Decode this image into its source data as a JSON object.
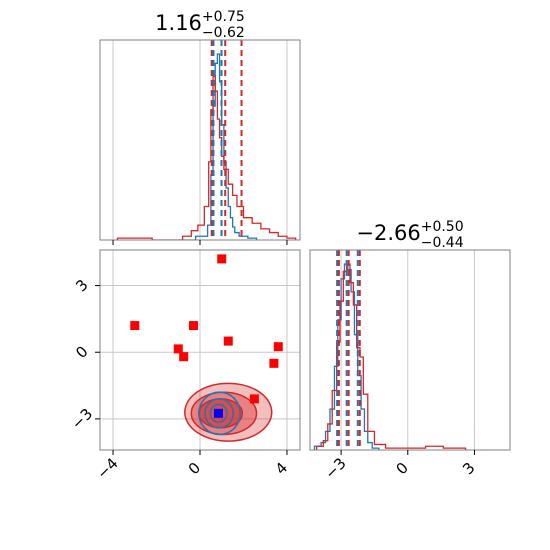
{
  "chart_data": [
    {
      "panel": "marginal-param-1",
      "type": "histogram",
      "title": {
        "value": "1.16",
        "plus": "+0.75",
        "minus": "−0.62"
      },
      "xlim": [
        -4.6,
        4.6
      ],
      "grid": true,
      "x_ticks": [
        -4,
        0,
        4
      ],
      "series": [
        {
          "color": "#1f77b4",
          "bins": [
            [
              -1.0,
              0
            ],
            [
              -0.2,
              0.02
            ],
            [
              0.35,
              0.08
            ],
            [
              0.5,
              0.35
            ],
            [
              0.6,
              0.72
            ],
            [
              0.7,
              0.95
            ],
            [
              0.8,
              1.0
            ],
            [
              0.9,
              0.85
            ],
            [
              1.0,
              0.62
            ],
            [
              1.1,
              0.42
            ],
            [
              1.2,
              0.28
            ],
            [
              1.3,
              0.18
            ],
            [
              1.4,
              0.12
            ],
            [
              1.5,
              0.07
            ],
            [
              1.6,
              0.04
            ],
            [
              1.8,
              0.02
            ],
            [
              2.2,
              0.01
            ],
            [
              2.6,
              0
            ]
          ]
        },
        {
          "color": "#d62728",
          "bins": [
            [
              -3.8,
              0.01
            ],
            [
              -2.2,
              0
            ],
            [
              -0.8,
              0.02
            ],
            [
              -0.4,
              0.05
            ],
            [
              -0.1,
              0.08
            ],
            [
              0.2,
              0.18
            ],
            [
              0.4,
              0.42
            ],
            [
              0.5,
              0.7
            ],
            [
              0.6,
              0.88
            ],
            [
              0.7,
              0.8
            ],
            [
              0.8,
              0.65
            ],
            [
              0.9,
              0.55
            ],
            [
              1.0,
              0.45
            ],
            [
              1.1,
              0.38
            ],
            [
              1.3,
              0.3
            ],
            [
              1.5,
              0.24
            ],
            [
              1.7,
              0.18
            ],
            [
              2.0,
              0.12
            ],
            [
              2.4,
              0.09
            ],
            [
              2.8,
              0.06
            ],
            [
              3.2,
              0.04
            ],
            [
              3.6,
              0.02
            ],
            [
              4.0,
              0.01
            ],
            [
              4.4,
              0
            ]
          ]
        }
      ],
      "quantile_lines": [
        {
          "x": 0.54,
          "color": "#d62728"
        },
        {
          "x": 0.62,
          "color": "#1f77b4"
        },
        {
          "x": 0.99,
          "color": "#1f77b4"
        },
        {
          "x": 1.16,
          "color": "#d62728"
        },
        {
          "x": 1.91,
          "color": "#d62728"
        }
      ]
    },
    {
      "panel": "joint-param-1-vs-param-2",
      "type": "scatter",
      "xlim": [
        -4.6,
        4.6
      ],
      "ylim": [
        -4.4,
        4.6
      ],
      "grid": true,
      "x_ticks": [
        -4,
        0,
        4
      ],
      "y_ticks": [
        -3,
        0,
        3
      ],
      "red_markers": [
        {
          "x": 1.0,
          "y": 4.2
        },
        {
          "x": -3.0,
          "y": 1.2
        },
        {
          "x": -0.3,
          "y": 1.2
        },
        {
          "x": 1.3,
          "y": 0.5
        },
        {
          "x": -1.0,
          "y": 0.15
        },
        {
          "x": -0.75,
          "y": -0.2
        },
        {
          "x": 3.6,
          "y": 0.25
        },
        {
          "x": 3.4,
          "y": -0.5
        },
        {
          "x": 2.5,
          "y": -2.1
        }
      ],
      "blue_marker": {
        "x": 0.85,
        "y": -2.75
      },
      "red_contours": [
        {
          "cx": 1.3,
          "cy": -2.7,
          "rx": 2.0,
          "ry": 1.3,
          "opacity": 0.3
        },
        {
          "cx": 1.1,
          "cy": -2.75,
          "rx": 1.5,
          "ry": 0.95,
          "opacity": 0.4
        },
        {
          "cx": 0.95,
          "cy": -2.75,
          "rx": 1.0,
          "ry": 0.65,
          "opacity": 0.6
        }
      ],
      "blue_contours": [
        {
          "cx": 0.9,
          "cy": -2.75,
          "rx": 0.95,
          "ry": 0.95
        },
        {
          "cx": 0.88,
          "cy": -2.75,
          "rx": 0.65,
          "ry": 0.65
        },
        {
          "cx": 0.86,
          "cy": -2.75,
          "rx": 0.38,
          "ry": 0.4
        }
      ]
    },
    {
      "panel": "marginal-param-2",
      "type": "histogram",
      "title": {
        "value": "−2.66",
        "plus": "+0.50",
        "minus": "−0.44"
      },
      "xlim": [
        -4.4,
        4.6
      ],
      "grid": true,
      "x_ticks": [
        -3,
        0,
        3
      ],
      "series": [
        {
          "color": "#1f77b4",
          "bins": [
            [
              -4.2,
              0.02
            ],
            [
              -3.9,
              0.04
            ],
            [
              -3.7,
              0.1
            ],
            [
              -3.5,
              0.22
            ],
            [
              -3.3,
              0.45
            ],
            [
              -3.15,
              0.7
            ],
            [
              -3.0,
              0.92
            ],
            [
              -2.85,
              1.0
            ],
            [
              -2.7,
              0.97
            ],
            [
              -2.55,
              0.85
            ],
            [
              -2.4,
              0.62
            ],
            [
              -2.25,
              0.4
            ],
            [
              -2.1,
              0.22
            ],
            [
              -1.95,
              0.1
            ],
            [
              -1.8,
              0.04
            ],
            [
              -1.6,
              0.01
            ],
            [
              -1.3,
              0
            ]
          ]
        },
        {
          "color": "#d62728",
          "bins": [
            [
              -4.1,
              0.02
            ],
            [
              -3.8,
              0.05
            ],
            [
              -3.6,
              0.14
            ],
            [
              -3.4,
              0.32
            ],
            [
              -3.2,
              0.58
            ],
            [
              -3.05,
              0.8
            ],
            [
              -2.9,
              0.96
            ],
            [
              -2.75,
              1.0
            ],
            [
              -2.6,
              0.9
            ],
            [
              -2.45,
              0.78
            ],
            [
              -2.3,
              0.55
            ],
            [
              -2.15,
              0.5
            ],
            [
              -2.0,
              0.3
            ],
            [
              -1.8,
              0.1
            ],
            [
              -1.5,
              0.03
            ],
            [
              -1.0,
              0.01
            ],
            [
              0.8,
              0.02
            ],
            [
              1.6,
              0.01
            ],
            [
              2.6,
              0
            ]
          ]
        }
      ],
      "quantile_lines": [
        {
          "x": -3.18,
          "color": "#1f77b4"
        },
        {
          "x": -3.1,
          "color": "#d62728"
        },
        {
          "x": -2.75,
          "color": "#1f77b4"
        },
        {
          "x": -2.66,
          "color": "#d62728"
        },
        {
          "x": -2.25,
          "color": "#1f77b4"
        },
        {
          "x": -2.16,
          "color": "#d62728"
        }
      ]
    }
  ]
}
